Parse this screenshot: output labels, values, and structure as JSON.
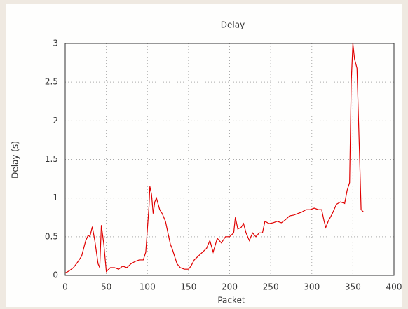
{
  "chart_data": {
    "type": "line",
    "title": "Delay",
    "x_label": "Packet",
    "y_label": "Delay (s)",
    "x": [
      0,
      5,
      10,
      15,
      20,
      25,
      28,
      30,
      33,
      36,
      40,
      42,
      44,
      47,
      50,
      55,
      60,
      65,
      70,
      75,
      80,
      85,
      90,
      95,
      98,
      100,
      102,
      103,
      105,
      107,
      109,
      111,
      115,
      118,
      122,
      125,
      128,
      130,
      133,
      136,
      140,
      145,
      150,
      153,
      157,
      162,
      167,
      172,
      176,
      180,
      185,
      190,
      195,
      200,
      205,
      207,
      210,
      214,
      217,
      220,
      224,
      228,
      232,
      236,
      240,
      243,
      248,
      253,
      258,
      263,
      268,
      273,
      278,
      283,
      288,
      293,
      298,
      303,
      308,
      312,
      315,
      317,
      320,
      325,
      330,
      335,
      340,
      343,
      346,
      348,
      350,
      352,
      355,
      358,
      360,
      363
    ],
    "series": [
      {
        "name": "Delay",
        "color": "#e00000",
        "values": [
          0.03,
          0.06,
          0.1,
          0.17,
          0.25,
          0.45,
          0.52,
          0.5,
          0.63,
          0.45,
          0.15,
          0.1,
          0.65,
          0.4,
          0.05,
          0.1,
          0.1,
          0.08,
          0.12,
          0.1,
          0.15,
          0.18,
          0.2,
          0.2,
          0.3,
          0.6,
          0.9,
          1.15,
          1.05,
          0.8,
          0.95,
          1.0,
          0.85,
          0.8,
          0.7,
          0.55,
          0.4,
          0.35,
          0.25,
          0.15,
          0.1,
          0.08,
          0.08,
          0.12,
          0.2,
          0.25,
          0.3,
          0.35,
          0.45,
          0.3,
          0.48,
          0.42,
          0.5,
          0.5,
          0.55,
          0.75,
          0.6,
          0.62,
          0.67,
          0.55,
          0.45,
          0.55,
          0.5,
          0.55,
          0.55,
          0.7,
          0.67,
          0.68,
          0.7,
          0.68,
          0.72,
          0.77,
          0.78,
          0.8,
          0.82,
          0.85,
          0.85,
          0.87,
          0.85,
          0.85,
          0.7,
          0.62,
          0.7,
          0.8,
          0.92,
          0.95,
          0.93,
          1.1,
          1.2,
          2.5,
          3.0,
          2.8,
          2.68,
          1.6,
          0.85,
          0.82
        ]
      }
    ],
    "xlim": [
      0,
      400
    ],
    "xticks": [
      0,
      50,
      100,
      150,
      200,
      250,
      300,
      350,
      400
    ],
    "ylim": [
      0,
      3
    ],
    "yticks": [
      0,
      0.5,
      1,
      1.5,
      2,
      2.5,
      3
    ],
    "grid": true
  }
}
